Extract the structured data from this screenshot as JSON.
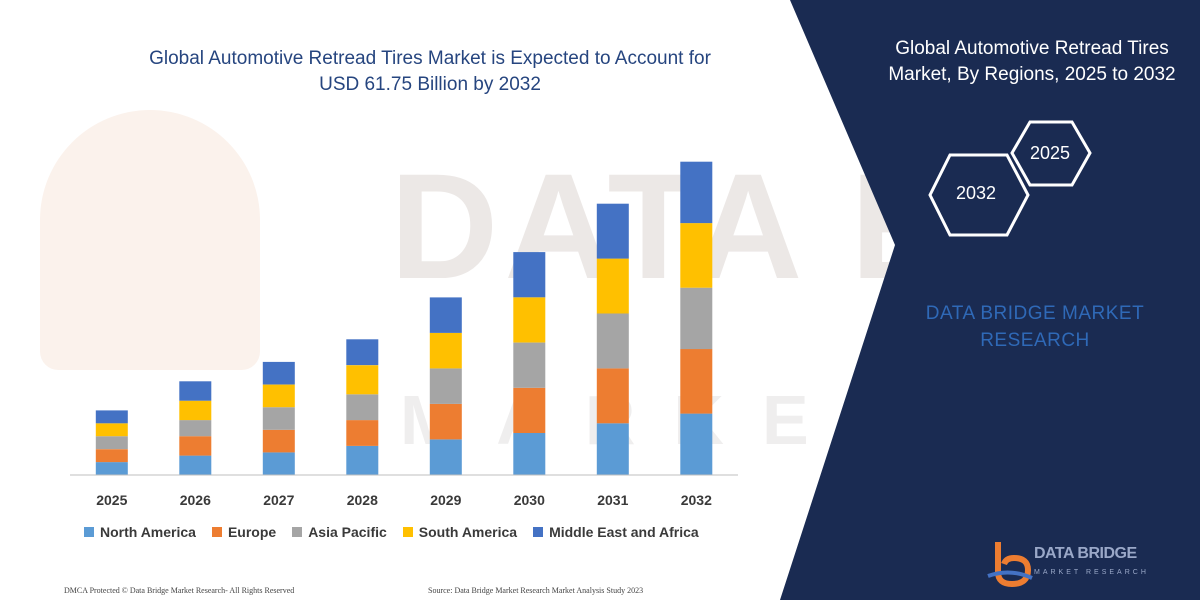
{
  "watermark": {
    "line1": "DATA BRIDGE",
    "line2": "MARKET RESEARCH"
  },
  "chart_data": {
    "type": "bar",
    "stacked": true,
    "title": "Global Automotive Retread Tires Market is Expected to Account for USD 61.75 Billion by 2032",
    "title_lines": [
      "Global Automotive Retread Tires Market is Expected to Account for",
      "USD 61.75 Billion by 2032"
    ],
    "categories": [
      "2025",
      "2026",
      "2027",
      "2028",
      "2029",
      "2030",
      "2031",
      "2032"
    ],
    "series": [
      {
        "name": "North America",
        "color": "#5b9bd5",
        "values": [
          4,
          6,
          7,
          9,
          11,
          13,
          16,
          19
        ]
      },
      {
        "name": "Europe",
        "color": "#ed7d31",
        "values": [
          4,
          6,
          7,
          8,
          11,
          14,
          17,
          20
        ]
      },
      {
        "name": "Asia Pacific",
        "color": "#a5a5a5",
        "values": [
          4,
          5,
          7,
          8,
          11,
          14,
          17,
          19
        ]
      },
      {
        "name": "South America",
        "color": "#ffc000",
        "values": [
          4,
          6,
          7,
          9,
          11,
          14,
          17,
          20
        ]
      },
      {
        "name": "Middle East and Africa",
        "color": "#4472c4",
        "values": [
          4,
          6,
          7,
          8,
          11,
          14,
          17,
          19
        ]
      }
    ],
    "xlabel": "",
    "ylabel": "",
    "ylim": [
      0,
      100
    ],
    "grid": false,
    "legend_position": "bottom"
  },
  "footnote": {
    "left": "DMCA Protected © Data Bridge Market Research- All Rights Reserved",
    "right": "Source: Data Bridge Market Research Market Analysis Study 2023"
  },
  "panel": {
    "title_line1": "Global Automotive Retread Tires",
    "title_line2": "Market, By Regions, 2025 to 2032",
    "hex_top": "2025",
    "hex_bottom": "2032",
    "brand_line1": "DATA BRIDGE MARKET",
    "brand_line2": "RESEARCH",
    "logo_line1": "DATA BRIDGE",
    "logo_line2": "MARKET RESEARCH",
    "background_color": "#1a2b52"
  }
}
